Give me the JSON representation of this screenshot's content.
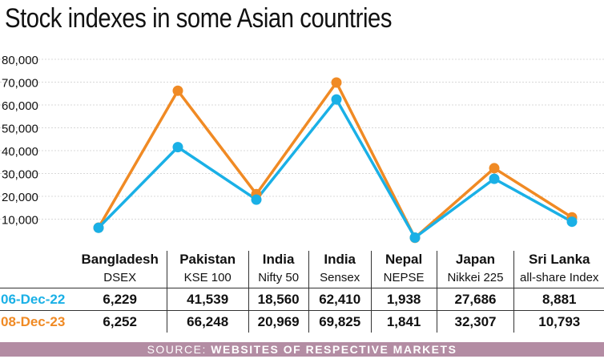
{
  "title": "Stock indexes in some Asian countries",
  "chart_data": {
    "type": "line",
    "title": "Stock indexes in some Asian countries",
    "ylim": [
      0,
      80000
    ],
    "yticks": [
      "80,000",
      "70,000",
      "60,000",
      "50,000",
      "40,000",
      "30,000",
      "20,000",
      "10,000"
    ],
    "ytick_values": [
      80000,
      70000,
      60000,
      50000,
      40000,
      30000,
      20000,
      10000
    ],
    "categories": [
      {
        "country": "Bangladesh",
        "index": "DSEX"
      },
      {
        "country": "Pakistan",
        "index": "KSE 100"
      },
      {
        "country": "India",
        "index": "Nifty 50"
      },
      {
        "country": "India",
        "index": "Sensex"
      },
      {
        "country": "Nepal",
        "index": "NEPSE"
      },
      {
        "country": "Japan",
        "index": "Nikkei 225"
      },
      {
        "country": "Sri Lanka",
        "index": "all-share Index"
      }
    ],
    "series": [
      {
        "name": "06-Dec-22",
        "color": "#1ab0e6",
        "values": [
          6229,
          41539,
          18560,
          62410,
          1938,
          27686,
          8881
        ],
        "labels": [
          "6,229",
          "41,539",
          "18,560",
          "62,410",
          "1,938",
          "27,686",
          "8,881"
        ]
      },
      {
        "name": "08-Dec-23",
        "color": "#f08a24",
        "values": [
          6252,
          66248,
          20969,
          69825,
          1841,
          32307,
          10793
        ],
        "labels": [
          "6,252",
          "66,248",
          "20,969",
          "69,825",
          "1,841",
          "32,307",
          "10,793"
        ]
      }
    ]
  },
  "source": {
    "label": "SOURCE:",
    "text": "WEBSITES OF RESPECTIVE MARKETS"
  }
}
